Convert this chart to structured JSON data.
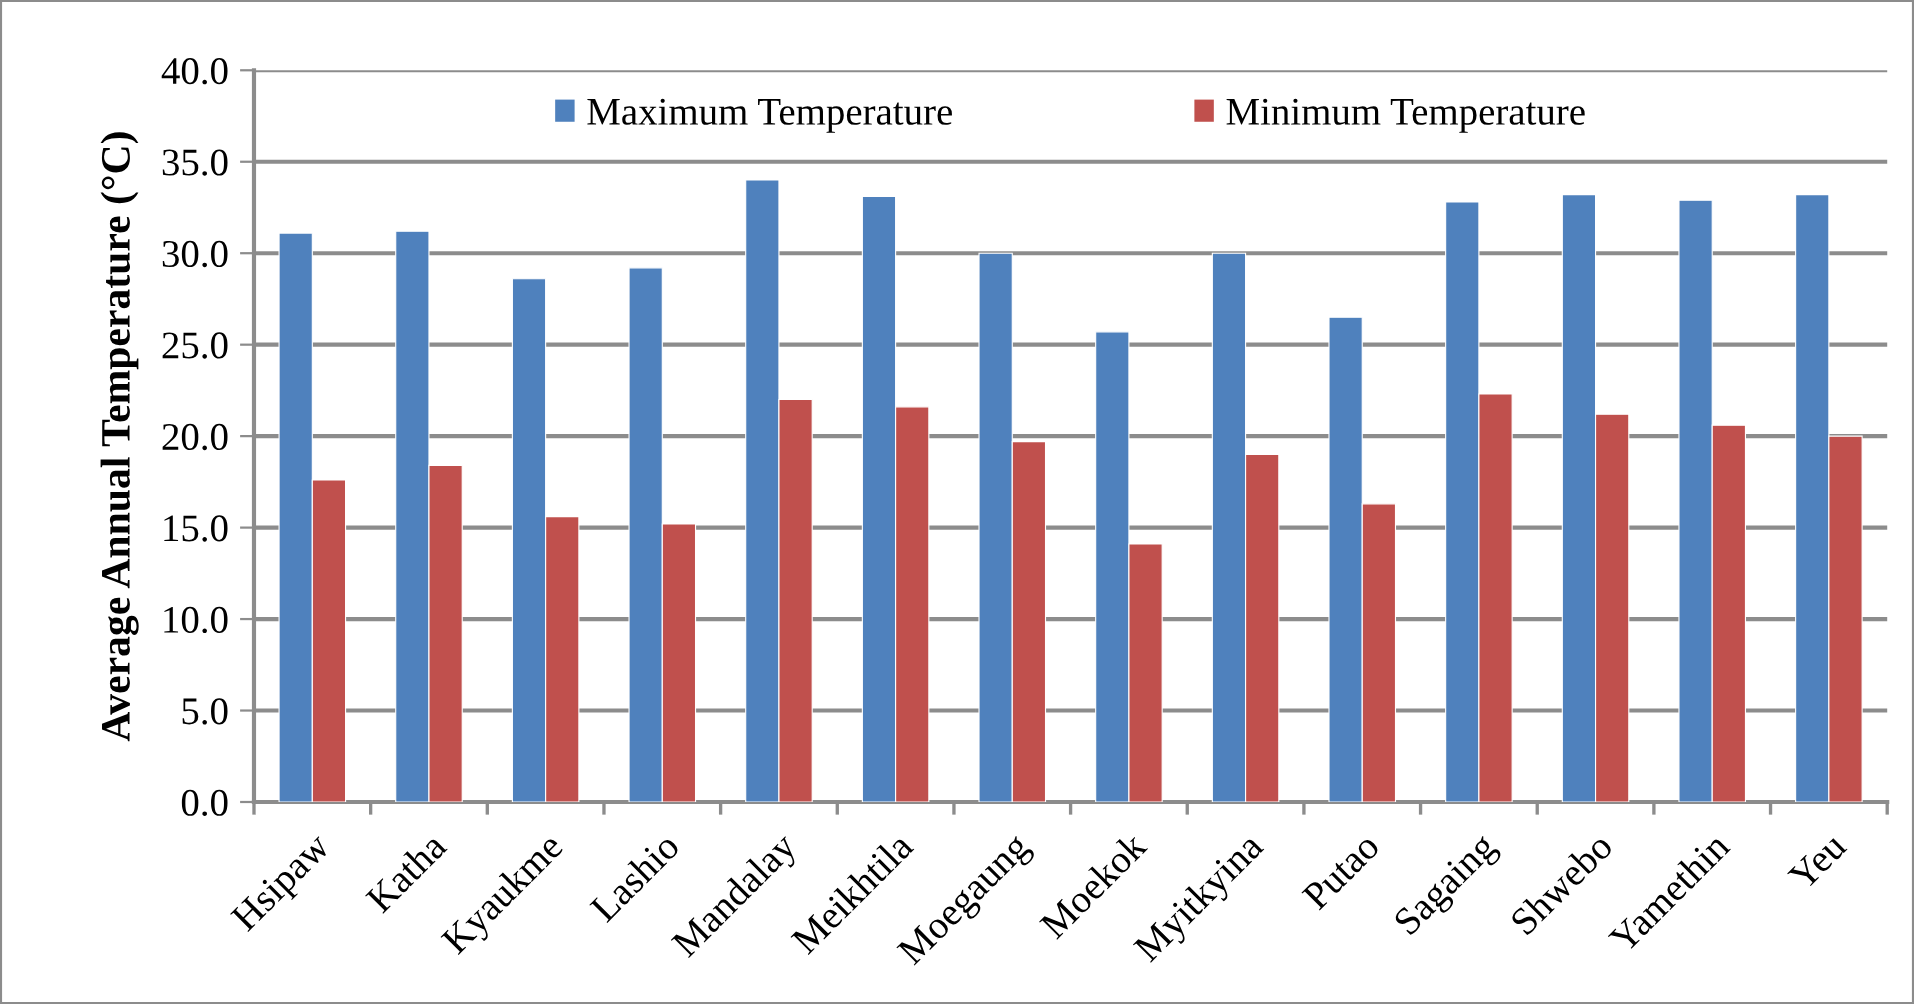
{
  "chart_data": {
    "type": "bar",
    "ylabel": "Average Annual Temperature (°C)",
    "categories": [
      "Hsipaw",
      "Katha",
      "Kyaukme",
      "Lashio",
      "Mandalay",
      "Meikhtila",
      "Moegaung",
      "Moekok",
      "Myitkyina",
      "Putao",
      "Sagaing",
      "Shwebo",
      "Yamethin",
      "Yeu"
    ],
    "series": [
      {
        "name": "Maximum Temperature",
        "color": "#4f81bd",
        "values": [
          31.1,
          31.2,
          28.6,
          29.2,
          34.0,
          33.1,
          30.0,
          25.7,
          30.0,
          26.5,
          32.8,
          33.2,
          32.9,
          33.2
        ]
      },
      {
        "name": "Minimum Temperature",
        "color": "#c0504d",
        "values": [
          17.6,
          18.4,
          15.6,
          15.2,
          22.0,
          21.6,
          19.7,
          14.1,
          19.0,
          16.3,
          22.3,
          21.2,
          20.6,
          20.0
        ]
      }
    ],
    "ylim": [
      0,
      40
    ],
    "yticks": [
      {
        "value": 0,
        "label": "0.0"
      },
      {
        "value": 5,
        "label": "5.0"
      },
      {
        "value": 10,
        "label": "10.0"
      },
      {
        "value": 15,
        "label": "15.0"
      },
      {
        "value": 20,
        "label": "20.0"
      },
      {
        "value": 25,
        "label": "25.0"
      },
      {
        "value": 30,
        "label": "30.0"
      },
      {
        "value": 35,
        "label": "35.0"
      },
      {
        "value": 40,
        "label": "40.0"
      }
    ],
    "grid": "y",
    "legend": "top"
  }
}
